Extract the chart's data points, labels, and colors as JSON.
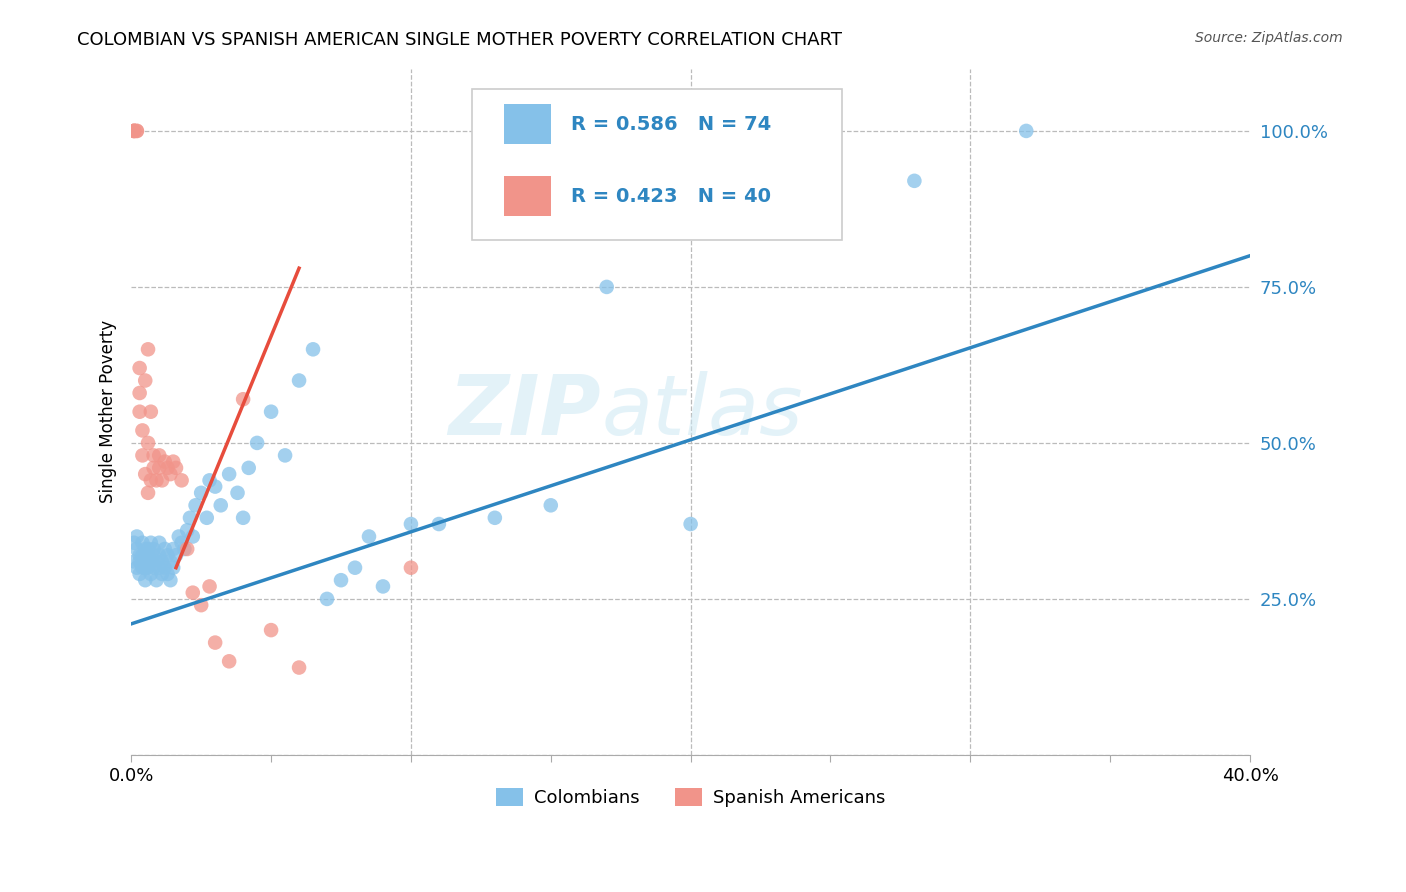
{
  "title": "COLOMBIAN VS SPANISH AMERICAN SINGLE MOTHER POVERTY CORRELATION CHART",
  "source": "Source: ZipAtlas.com",
  "ylabel": "Single Mother Poverty",
  "legend_label1": "Colombians",
  "legend_label2": "Spanish Americans",
  "legend_r1": "R = 0.586",
  "legend_n1": "N = 74",
  "legend_r2": "R = 0.423",
  "legend_n2": "N = 40",
  "color_blue": "#85C1E9",
  "color_pink": "#F1948A",
  "color_blue_line": "#2E86C1",
  "color_pink_line": "#E74C3C",
  "watermark_zip": "ZIP",
  "watermark_atlas": "atlas",
  "colombians_x": [
    0.001,
    0.001,
    0.002,
    0.002,
    0.002,
    0.003,
    0.003,
    0.003,
    0.004,
    0.004,
    0.004,
    0.005,
    0.005,
    0.005,
    0.005,
    0.006,
    0.006,
    0.006,
    0.007,
    0.007,
    0.007,
    0.008,
    0.008,
    0.008,
    0.009,
    0.009,
    0.01,
    0.01,
    0.01,
    0.011,
    0.011,
    0.012,
    0.012,
    0.013,
    0.013,
    0.014,
    0.014,
    0.015,
    0.015,
    0.016,
    0.017,
    0.018,
    0.019,
    0.02,
    0.021,
    0.022,
    0.023,
    0.025,
    0.027,
    0.028,
    0.03,
    0.032,
    0.035,
    0.038,
    0.04,
    0.042,
    0.045,
    0.05,
    0.055,
    0.06,
    0.065,
    0.07,
    0.075,
    0.08,
    0.085,
    0.09,
    0.1,
    0.11,
    0.13,
    0.15,
    0.17,
    0.2,
    0.28,
    0.32
  ],
  "colombians_y": [
    0.34,
    0.31,
    0.33,
    0.3,
    0.35,
    0.32,
    0.29,
    0.31,
    0.3,
    0.32,
    0.34,
    0.31,
    0.33,
    0.3,
    0.28,
    0.32,
    0.3,
    0.33,
    0.31,
    0.34,
    0.29,
    0.32,
    0.3,
    0.33,
    0.31,
    0.28,
    0.32,
    0.3,
    0.34,
    0.29,
    0.31,
    0.3,
    0.33,
    0.29,
    0.32,
    0.31,
    0.28,
    0.3,
    0.33,
    0.32,
    0.35,
    0.34,
    0.33,
    0.36,
    0.38,
    0.35,
    0.4,
    0.42,
    0.38,
    0.44,
    0.43,
    0.4,
    0.45,
    0.42,
    0.38,
    0.46,
    0.5,
    0.55,
    0.48,
    0.6,
    0.65,
    0.25,
    0.28,
    0.3,
    0.35,
    0.27,
    0.37,
    0.37,
    0.38,
    0.4,
    0.75,
    0.37,
    0.92,
    1.0
  ],
  "spanish_x": [
    0.001,
    0.001,
    0.001,
    0.001,
    0.002,
    0.002,
    0.003,
    0.003,
    0.003,
    0.004,
    0.004,
    0.005,
    0.005,
    0.006,
    0.006,
    0.006,
    0.007,
    0.007,
    0.008,
    0.008,
    0.009,
    0.01,
    0.01,
    0.011,
    0.012,
    0.013,
    0.014,
    0.015,
    0.016,
    0.018,
    0.02,
    0.022,
    0.025,
    0.028,
    0.03,
    0.035,
    0.04,
    0.05,
    0.06,
    0.1
  ],
  "spanish_y": [
    1.0,
    1.0,
    1.0,
    1.0,
    1.0,
    1.0,
    0.62,
    0.58,
    0.55,
    0.52,
    0.48,
    0.6,
    0.45,
    0.65,
    0.42,
    0.5,
    0.55,
    0.44,
    0.48,
    0.46,
    0.44,
    0.48,
    0.46,
    0.44,
    0.47,
    0.46,
    0.45,
    0.47,
    0.46,
    0.44,
    0.33,
    0.26,
    0.24,
    0.27,
    0.18,
    0.15,
    0.57,
    0.2,
    0.14,
    0.3
  ],
  "blue_line_x": [
    0.0,
    0.4
  ],
  "blue_line_y": [
    0.21,
    0.8
  ],
  "pink_line_x": [
    0.016,
    0.06
  ],
  "pink_line_y": [
    0.3,
    0.78
  ],
  "xlim": [
    0.0,
    0.4
  ],
  "ylim": [
    0.0,
    1.1
  ],
  "ytick_vals": [
    0.25,
    0.5,
    0.75,
    1.0
  ],
  "ytick_labels": [
    "25.0%",
    "50.0%",
    "75.0%",
    "100.0%"
  ]
}
